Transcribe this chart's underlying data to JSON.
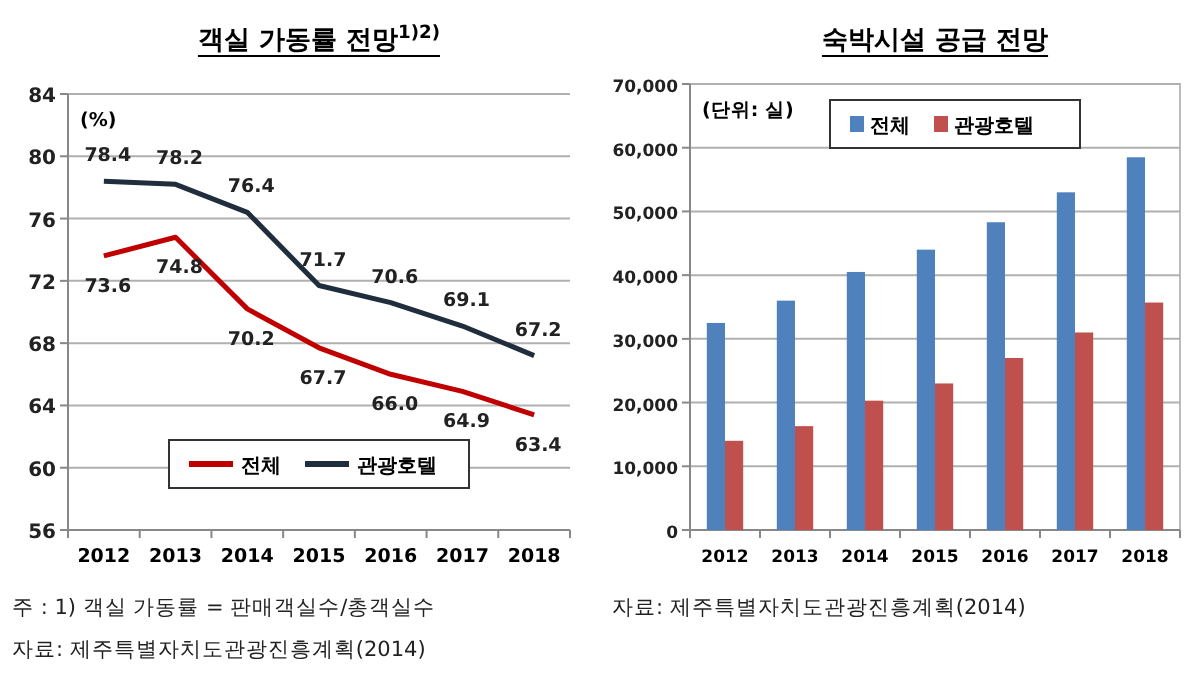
{
  "chart_data": [
    {
      "type": "line",
      "title": "객실 가동률 전망$^{1)2)}$",
      "ylabel": "(%)",
      "categories": [
        "2012",
        "2013",
        "2014",
        "2015",
        "2016",
        "2017",
        "2018"
      ],
      "series": [
        {
          "name": "전체",
          "color": "#c00000",
          "values": [
            73.6,
            74.8,
            70.2,
            67.7,
            66.0,
            64.9,
            63.4
          ],
          "value_labels": [
            "73.6",
            "74.8",
            "70.2",
            "67.7",
            "66.0",
            "64.9",
            "63.4"
          ]
        },
        {
          "name": "관광호텔",
          "color": "#1f2d3d",
          "values": [
            78.4,
            78.2,
            76.4,
            71.7,
            70.6,
            69.1,
            67.2
          ],
          "value_labels": [
            "78.4",
            "78.2",
            "76.4",
            "71.7",
            "70.6",
            "69.1",
            "67.2"
          ]
        }
      ],
      "ylim": [
        56,
        84
      ],
      "yticks": [
        56,
        60,
        64,
        68,
        72,
        76,
        80,
        84
      ],
      "grid": "y",
      "legend": "bottom",
      "annotations": [
        "주  : 1) 객실 가동률 = 판매객실수/총객실수",
        "자료: 제주특별자치도관광진흥계획(2014)"
      ]
    },
    {
      "type": "bar",
      "title": "숙박시설 공급 전망",
      "ylabel": "(단위: 실)",
      "categories": [
        "2012",
        "2013",
        "2014",
        "2015",
        "2016",
        "2017",
        "2018"
      ],
      "series": [
        {
          "name": "전체",
          "color": "#4f81bd",
          "values": [
            32500,
            36000,
            40500,
            44000,
            48300,
            53000,
            58500
          ]
        },
        {
          "name": "관광호텔",
          "color": "#c0504d",
          "values": [
            14000,
            16300,
            20300,
            23000,
            27000,
            31000,
            35700
          ]
        }
      ],
      "ylim": [
        0,
        70000
      ],
      "yticks": [
        {
          "value": 0,
          "label": "0"
        },
        {
          "value": 10000,
          "label": "10,000"
        },
        {
          "value": 20000,
          "label": "20,000"
        },
        {
          "value": 30000,
          "label": "30,000"
        },
        {
          "value": 40000,
          "label": "40,000"
        },
        {
          "value": 50000,
          "label": "50,000"
        },
        {
          "value": 60000,
          "label": "60,000"
        },
        {
          "value": 70000,
          "label": "70,000"
        }
      ],
      "grid": "y",
      "legend": "top",
      "annotations": [
        "자료: 제주특별자치도관광진흥계획(2014)"
      ]
    }
  ]
}
